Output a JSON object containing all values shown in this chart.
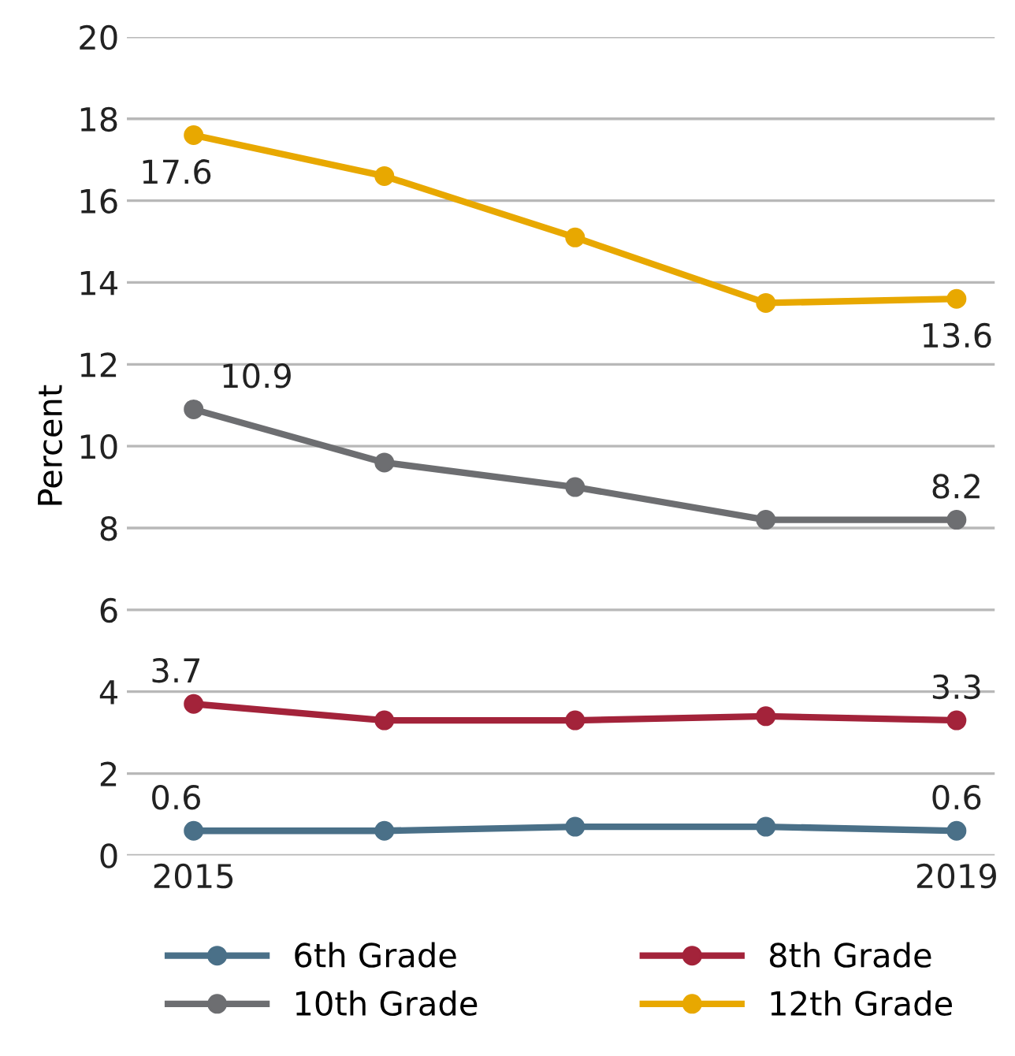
{
  "chart_data": {
    "type": "line",
    "ylabel": "Percent",
    "categories": [
      "2015",
      null,
      null,
      null,
      "2019"
    ],
    "ylim": [
      0,
      20
    ],
    "yticks": [
      0,
      2,
      4,
      6,
      8,
      10,
      12,
      14,
      16,
      18,
      20
    ],
    "grid": "y",
    "legend": "bottom",
    "marker": "circle",
    "line_style": "solid",
    "series": [
      {
        "name": "6th Grade",
        "color": "#4a7088",
        "values": [
          0.6,
          0.6,
          0.7,
          0.7,
          0.6
        ],
        "value_labels": [
          "0.6",
          null,
          null,
          null,
          "0.6"
        ]
      },
      {
        "name": "8th Grade",
        "color": "#a3233a",
        "values": [
          3.7,
          3.3,
          3.3,
          3.4,
          3.3
        ],
        "value_labels": [
          "3.7",
          null,
          null,
          null,
          "3.3"
        ]
      },
      {
        "name": "10th Grade",
        "color": "#6d6e71",
        "values": [
          10.9,
          9.6,
          9.0,
          8.2,
          8.2
        ],
        "value_labels": [
          "10.9",
          null,
          null,
          null,
          "8.2"
        ]
      },
      {
        "name": "12th Grade",
        "color": "#e8a800",
        "values": [
          17.6,
          16.6,
          15.1,
          13.5,
          13.6
        ],
        "value_labels": [
          "17.6",
          null,
          null,
          null,
          "13.6"
        ]
      }
    ]
  }
}
